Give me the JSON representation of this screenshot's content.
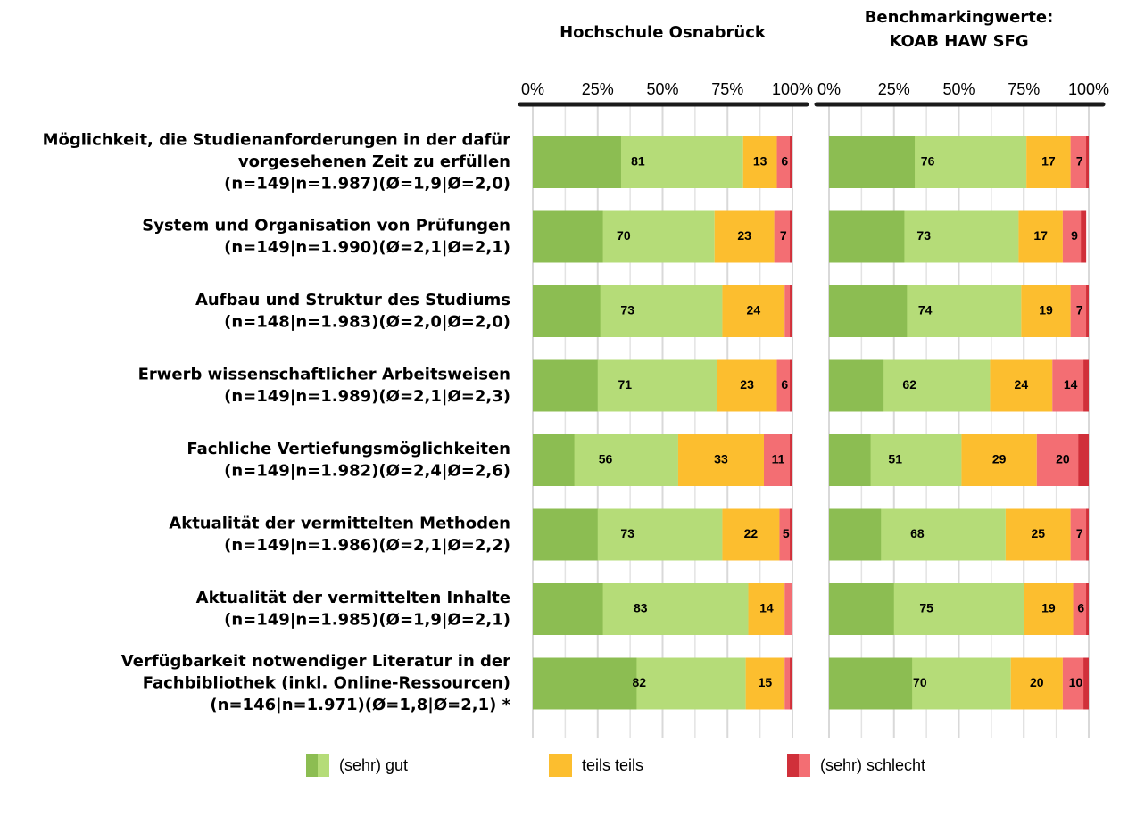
{
  "chart_data": [
    {
      "type": "stacked-bar",
      "title": [
        "Hochschule Osnabrück"
      ],
      "categories": [
        [
          "Möglichkeit, die Studienanforderungen in der dafür",
          "vorgesehenen Zeit zu erfüllen",
          "(n=149|n=1.987)(Ø=1,9|Ø=2,0)"
        ],
        [
          "System und Organisation von Prüfungen",
          "(n=149|n=1.990)(Ø=2,1|Ø=2,1)"
        ],
        [
          "Aufbau und Struktur des Studiums",
          "(n=148|n=1.983)(Ø=2,0|Ø=2,0)"
        ],
        [
          "Erwerb wissenschaftlicher Arbeitsweisen",
          "(n=149|n=1.989)(Ø=2,1|Ø=2,3)"
        ],
        [
          "Fachliche Vertiefungsmöglichkeiten",
          "(n=149|n=1.982)(Ø=2,4|Ø=2,6)"
        ],
        [
          "Aktualität der vermittelten Methoden",
          "(n=149|n=1.986)(Ø=2,1|Ø=2,2)"
        ],
        [
          "Aktualität der vermittelten Inhalte",
          "(n=149|n=1.985)(Ø=1,9|Ø=2,1)"
        ],
        [
          "Verfügbarkeit notwendiger Literatur in der",
          "Fachbibliothek (inkl. Online-Ressourcen)",
          "(n=146|n=1.971)(Ø=1,8|Ø=2,1) *"
        ]
      ],
      "xlim": [
        0,
        100
      ],
      "xticks": [
        {
          "value": 0,
          "label": "0%"
        },
        {
          "value": 25,
          "label": "25%"
        },
        {
          "value": 50,
          "label": "50%"
        },
        {
          "value": 75,
          "label": "75%"
        },
        {
          "value": 100,
          "label": "100%"
        }
      ],
      "minor_xticks": [
        12.5,
        37.5,
        62.5,
        87.5
      ],
      "grid": true,
      "series": [
        {
          "name": "(sehr) gut",
          "color": "#b5dc78",
          "dark_color": "#8cbd52",
          "values": [
            81,
            70,
            73,
            71,
            56,
            73,
            83,
            82
          ],
          "dark": [
            34,
            27,
            26,
            25,
            16,
            25,
            27,
            40
          ]
        },
        {
          "name": "teils teils",
          "color": "#fcbe2f",
          "values": [
            13,
            23,
            24,
            23,
            33,
            22,
            14,
            15
          ]
        },
        {
          "name": "(sehr) schlecht",
          "color": "#f36e73",
          "dark_color": "#d0303a",
          "values": [
            6,
            7,
            3,
            6,
            11,
            5,
            3,
            3
          ],
          "dark": [
            1,
            1,
            1,
            1,
            1,
            1,
            0,
            1
          ],
          "value_labels": [
            "6",
            "7",
            null,
            "6",
            "11",
            "5",
            null,
            null
          ]
        }
      ]
    },
    {
      "type": "stacked-bar",
      "title": [
        "Benchmarkingwerte:",
        "KOAB HAW SFG"
      ],
      "xlim": [
        0,
        100
      ],
      "xticks": [
        {
          "value": 0,
          "label": "0%"
        },
        {
          "value": 25,
          "label": "25%"
        },
        {
          "value": 50,
          "label": "50%"
        },
        {
          "value": 75,
          "label": "75%"
        },
        {
          "value": 100,
          "label": "100%"
        }
      ],
      "minor_xticks": [
        12.5,
        37.5,
        62.5,
        87.5
      ],
      "grid": true,
      "series": [
        {
          "color": "#b5dc78",
          "dark_color": "#8cbd52",
          "values": [
            76,
            73,
            74,
            62,
            51,
            68,
            75,
            70
          ],
          "dark": [
            33,
            29,
            30,
            21,
            16,
            20,
            25,
            32
          ]
        },
        {
          "color": "#fcbe2f",
          "values": [
            17,
            17,
            19,
            24,
            29,
            25,
            19,
            20
          ]
        },
        {
          "color": "#f36e73",
          "dark_color": "#d0303a",
          "values": [
            7,
            9,
            7,
            14,
            20,
            7,
            6,
            10
          ],
          "dark": [
            1,
            2,
            1,
            2,
            4,
            1,
            1,
            2
          ]
        }
      ]
    }
  ]
}
